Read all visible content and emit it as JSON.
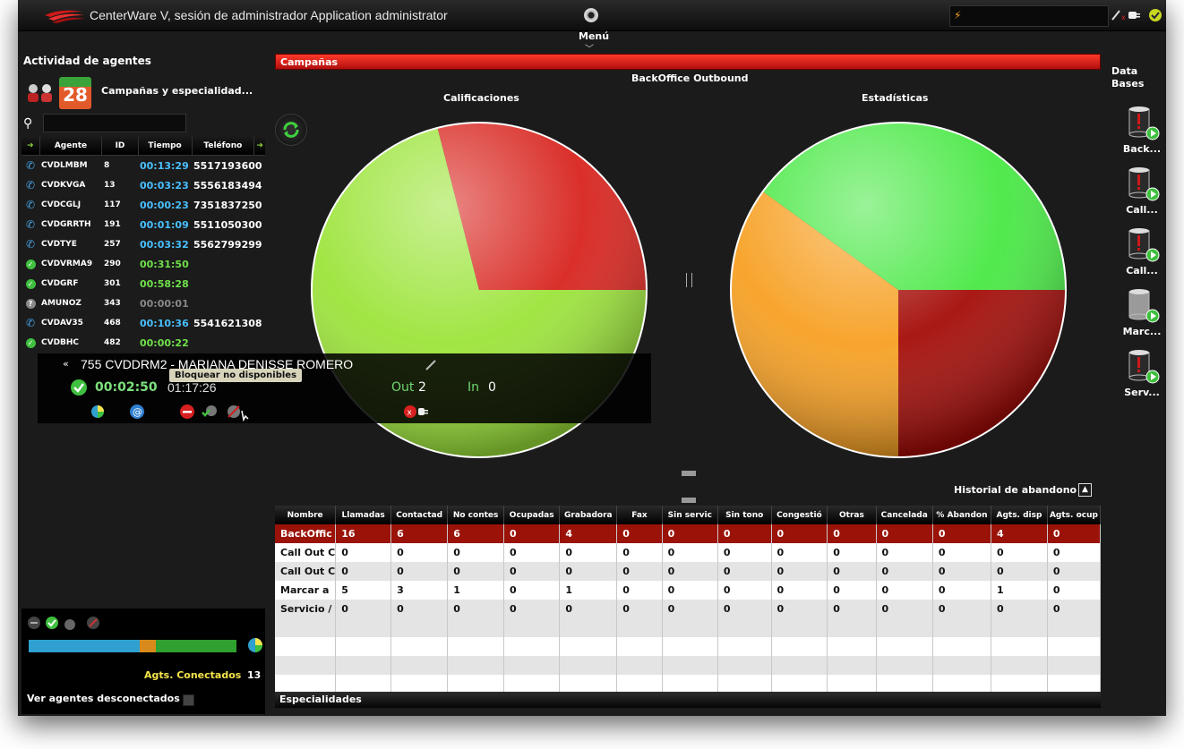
{
  "window": {
    "title": "CenterWare V, sesión de administrador Application  administrator",
    "menu_label": "Menú"
  },
  "left_panel": {
    "title": "Actividad de agentes",
    "calendar_number": "28",
    "campaign_label": "Campañas y especialidad...",
    "search_value": "",
    "columns": [
      "Agente",
      "ID",
      "Tiempo",
      "Teléfono"
    ],
    "rows": [
      {
        "status": "phone",
        "agent": "CVDLMBM",
        "id": "8",
        "time": "00:13:29",
        "phone": "5517193600",
        "time_color": "#48c0ff"
      },
      {
        "status": "phone",
        "agent": "CVDKVGA",
        "id": "13",
        "time": "00:03:23",
        "phone": "5556183494",
        "time_color": "#48c0ff"
      },
      {
        "status": "phone",
        "agent": "CVDCGLJ",
        "id": "117",
        "time": "00:00:23",
        "phone": "7351837250",
        "time_color": "#48c0ff"
      },
      {
        "status": "phone",
        "agent": "CVDGRRTH",
        "id": "191",
        "time": "00:01:09",
        "phone": "5511050300",
        "time_color": "#48c0ff"
      },
      {
        "status": "phone",
        "agent": "CVDTYE",
        "id": "257",
        "time": "00:03:32",
        "phone": "5562799299",
        "time_color": "#48c0ff"
      },
      {
        "status": "ok",
        "agent": "CVDVRMA9",
        "id": "290",
        "time": "00:31:50",
        "phone": "",
        "time_color": "#6fe04a"
      },
      {
        "status": "ok",
        "agent": "CVDGRF",
        "id": "301",
        "time": "00:58:28",
        "phone": "",
        "time_color": "#6fe04a"
      },
      {
        "status": "unknown",
        "agent": "AMUNOZ",
        "id": "343",
        "time": "00:00:01",
        "phone": "",
        "time_color": "#888888"
      },
      {
        "status": "phone",
        "agent": "CVDAV35",
        "id": "468",
        "time": "00:10:36",
        "phone": "5541621308",
        "time_color": "#48c0ff"
      },
      {
        "status": "ok",
        "agent": "CVDBHC",
        "id": "482",
        "time": "00:00:22",
        "phone": "",
        "time_color": "#6fe04a"
      }
    ],
    "agents_connected_label": "Agts. Conectados",
    "agents_connected_value": "13",
    "show_disconnected_label": "Ver agentes desconectados",
    "status_bar": [
      {
        "color": "#2fa0d0",
        "fraction": 0.535
      },
      {
        "color": "#d88a1c",
        "fraction": 0.075
      },
      {
        "color": "#30a030",
        "fraction": 0.39
      }
    ]
  },
  "popup": {
    "title": "755 CVDDRM2 - MARIANA DENISSE ROMERO",
    "state_time": "00:02:50",
    "session_time": "01:17:26",
    "out_label": "Out",
    "out_value": "2",
    "in_label": "In",
    "in_value": "0",
    "tooltip": "Bloquear no disponibles"
  },
  "campaigns": {
    "bar_label": "Campañas",
    "campaign_name": "BackOffice Outbound",
    "chart_left_title": "Calificaciones",
    "chart_right_title": "Estadísticas",
    "history_label": "Historial de abandono",
    "specialties_label": "Especialidades"
  },
  "chart_data": [
    {
      "type": "pie",
      "title": "Calificaciones",
      "slices": [
        {
          "value": 0.71,
          "color": "#9ce43a"
        },
        {
          "value": 0.29,
          "color": "#d8241e"
        }
      ]
    },
    {
      "type": "pie",
      "title": "Estadísticas",
      "slices": [
        {
          "value": 0.4,
          "color": "#48e844"
        },
        {
          "value": 0.25,
          "color": "#a40c08"
        },
        {
          "value": 0.35,
          "color": "#f7a023"
        }
      ]
    }
  ],
  "table": {
    "columns": [
      "Nombre",
      "Llamadas",
      "Contactad",
      "No contes",
      "Ocupadas",
      "Grabadora",
      "Fax",
      "Sin servic",
      "Sin tono",
      "Congestió",
      "Otras",
      "Cancelada",
      "% Abandon",
      "Agts. disp",
      "Agts. ocup"
    ],
    "rows": [
      [
        "BackOffic",
        "16",
        "6",
        "6",
        "0",
        "4",
        "0",
        "0",
        "0",
        "0",
        "0",
        "0",
        "0",
        "4",
        "0"
      ],
      [
        "Call Out C",
        "0",
        "0",
        "0",
        "0",
        "0",
        "0",
        "0",
        "0",
        "0",
        "0",
        "0",
        "0",
        "0",
        "0"
      ],
      [
        "Call Out C",
        "0",
        "0",
        "0",
        "0",
        "0",
        "0",
        "0",
        "0",
        "0",
        "0",
        "0",
        "0",
        "0",
        "0"
      ],
      [
        "Marcar a",
        "5",
        "3",
        "1",
        "0",
        "1",
        "0",
        "0",
        "0",
        "0",
        "0",
        "0",
        "0",
        "1",
        "0"
      ],
      [
        "Servicio /",
        "0",
        "0",
        "0",
        "0",
        "0",
        "0",
        "0",
        "0",
        "0",
        "0",
        "0",
        "0",
        "0",
        "0"
      ]
    ],
    "empty_rows": 4
  },
  "databases": {
    "title_line1": "Data",
    "title_line2": "Bases",
    "items": [
      "Back...",
      "Call...",
      "Call...",
      "Marc...",
      "Serv..."
    ]
  }
}
